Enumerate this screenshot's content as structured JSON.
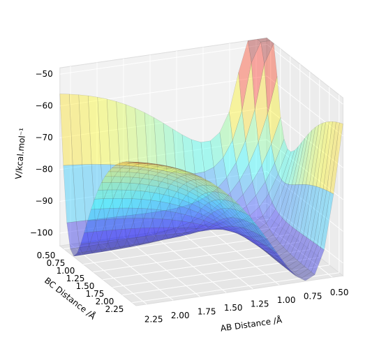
{
  "chart_data": {
    "type": "surface3d",
    "xlabel": "AB Distance /Å",
    "ylabel": "BC Distance /Å",
    "zlabel": "V/kcal.mol⁻¹",
    "xlim": [
      0.4,
      2.35
    ],
    "ylim": [
      0.4,
      2.35
    ],
    "zlim": [
      -104,
      -48
    ],
    "xticks": [
      {
        "value": 0.5,
        "label": "0.50"
      },
      {
        "value": 0.75,
        "label": "0.75"
      },
      {
        "value": 1.0,
        "label": "1.00"
      },
      {
        "value": 1.25,
        "label": "1.25"
      },
      {
        "value": 1.5,
        "label": "1.50"
      },
      {
        "value": 1.75,
        "label": "1.75"
      },
      {
        "value": 2.0,
        "label": "2.00"
      },
      {
        "value": 2.25,
        "label": "2.25"
      }
    ],
    "yticks": [
      {
        "value": 0.5,
        "label": "0.50"
      },
      {
        "value": 0.75,
        "label": "0.75"
      },
      {
        "value": 1.0,
        "label": "1.00"
      },
      {
        "value": 1.25,
        "label": "1.25"
      },
      {
        "value": 1.5,
        "label": "1.50"
      },
      {
        "value": 1.75,
        "label": "1.75"
      },
      {
        "value": 2.0,
        "label": "2.00"
      },
      {
        "value": 2.25,
        "label": "2.25"
      }
    ],
    "zticks": [
      {
        "value": -100,
        "label": "−100"
      },
      {
        "value": -90,
        "label": "−90"
      },
      {
        "value": -80,
        "label": "−80"
      },
      {
        "value": -70,
        "label": "−70"
      },
      {
        "value": -60,
        "label": "−60"
      },
      {
        "value": -50,
        "label": "−50"
      }
    ],
    "colormap": "jet",
    "grid": true
  }
}
